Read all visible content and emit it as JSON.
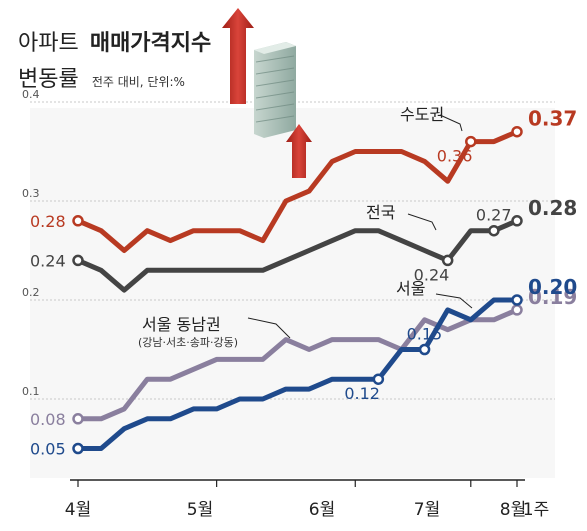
{
  "title": {
    "line1_prefix": "아파트",
    "line1_bold": "매매가격지수",
    "line2_main": "변동률",
    "line2_sub": "전주 대비, 단위:%"
  },
  "chart_data": {
    "type": "line",
    "ylim": [
      0.0,
      0.4
    ],
    "y_ticks": [
      "0.1",
      "0.2",
      "0.3",
      "0.4"
    ],
    "x_month_labels": [
      "4월",
      "5월",
      "6월",
      "7월",
      "8월",
      "1주"
    ],
    "series": [
      {
        "name": "수도권",
        "color": "#b83a22",
        "values": [
          0.28,
          0.27,
          0.25,
          0.27,
          0.26,
          0.27,
          0.27,
          0.27,
          0.26,
          0.3,
          0.31,
          0.34,
          0.35,
          0.35,
          0.35,
          0.34,
          0.32,
          0.36,
          0.36,
          0.37
        ],
        "start_label": "0.28",
        "mid_label": "0.36",
        "end_label": "0.37"
      },
      {
        "name": "전국",
        "color": "#444444",
        "values": [
          0.24,
          0.23,
          0.21,
          0.23,
          0.23,
          0.23,
          0.23,
          0.23,
          0.23,
          0.24,
          0.25,
          0.26,
          0.27,
          0.27,
          0.26,
          0.25,
          0.24,
          0.27,
          0.27,
          0.28
        ],
        "start_label": "0.24",
        "mid_label": "0.24",
        "mid2_label": "0.27",
        "end_label": "0.28"
      },
      {
        "name": "서울 동남권",
        "note": "(강남·서초·송파·강동)",
        "color": "#8a7f9e",
        "values": [
          0.08,
          0.08,
          0.09,
          0.12,
          0.12,
          0.13,
          0.14,
          0.14,
          0.14,
          0.16,
          0.15,
          0.16,
          0.16,
          0.16,
          0.15,
          0.18,
          0.17,
          0.18,
          0.18,
          0.19
        ],
        "start_label": "0.08",
        "end_label": "0.19"
      },
      {
        "name": "서울",
        "color": "#1f4a8c",
        "values": [
          0.05,
          0.05,
          0.07,
          0.08,
          0.08,
          0.09,
          0.09,
          0.1,
          0.1,
          0.11,
          0.11,
          0.12,
          0.12,
          0.12,
          0.15,
          0.15,
          0.19,
          0.18,
          0.2,
          0.2
        ],
        "start_label": "0.05",
        "mid_label": "0.12",
        "mid2_label": "0.15",
        "end_label": "0.20"
      }
    ]
  }
}
